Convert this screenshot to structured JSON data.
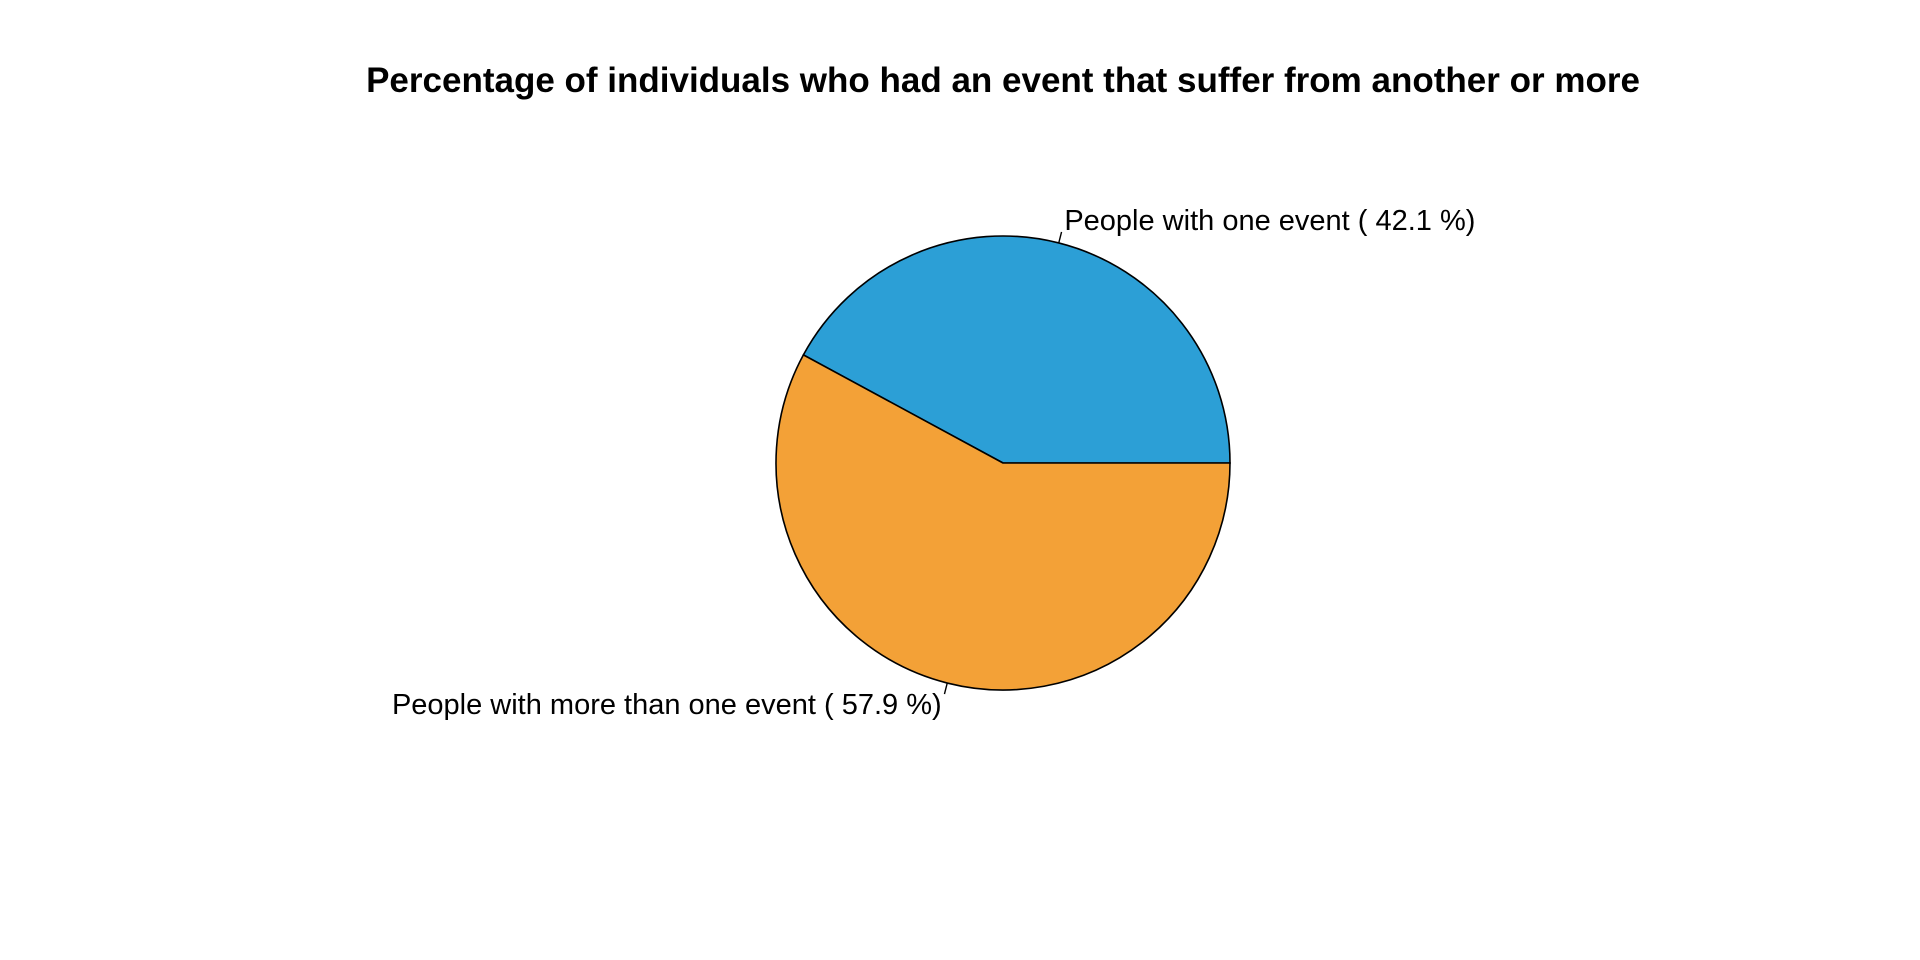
{
  "chart_data": {
    "type": "pie",
    "title": "Percentage of individuals who had an event that suffer from another or more",
    "start": "3 o'clock",
    "direction": "counterclockwise",
    "slices": [
      {
        "label": "People with one event ( 42.1 %)",
        "value": 42.1,
        "color": "#2C9FD6"
      },
      {
        "label": "People with more than one event ( 57.9 %)",
        "value": 57.9,
        "color": "#F3A137"
      }
    ]
  }
}
